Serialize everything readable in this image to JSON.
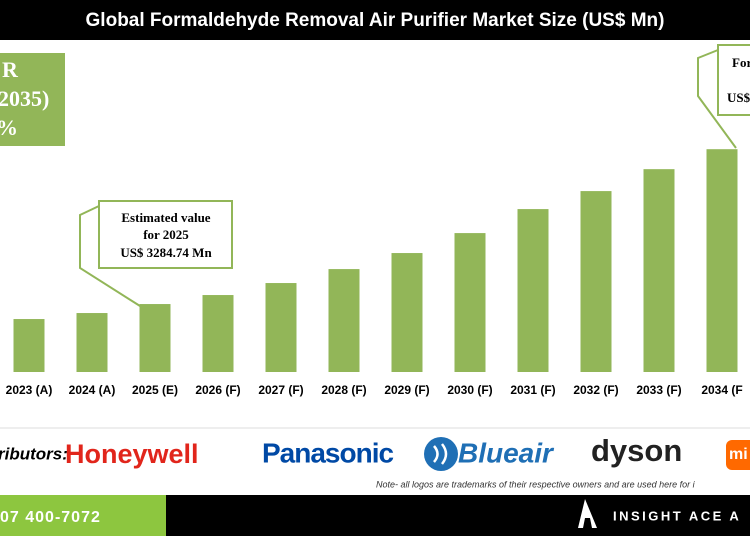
{
  "chart_data": {
    "type": "bar",
    "title": "Global Formaldehyde Removal Air Purifier Market Size (US$ Mn)",
    "categories": [
      "2023 (A)",
      "2024 (A)",
      "2025 (E)",
      "2026 (F)",
      "2027 (F)",
      "2028 (F)",
      "2029 (F)",
      "2030 (F)",
      "2031 (F)",
      "2032 (F)",
      "2033 (F)",
      "2034 (F"
    ],
    "values": [
      2560,
      2850,
      3284.74,
      3720,
      4300,
      4975,
      5750,
      6715,
      7875,
      8745,
      9805,
      10770
    ],
    "color": "#92b658",
    "ylim": [
      0,
      16000
    ],
    "annotations": [
      "Estimated value",
      "for 2025",
      "US$ 3284.74 Mn"
    ]
  },
  "cagr_box": [
    "R",
    "2035)",
    "%"
  ],
  "callout_2034": [
    "For",
    "US$"
  ],
  "distributors": {
    "label": "ributors:",
    "logos": [
      "Honeywell",
      "Panasonic",
      "Blueair",
      "dyson",
      "mi"
    ]
  },
  "note": "Note- all logos are trademarks of their respective owners and are used here for i",
  "footer": {
    "phone": "07 400-7072",
    "brand": "INSIGHT ACE A"
  }
}
